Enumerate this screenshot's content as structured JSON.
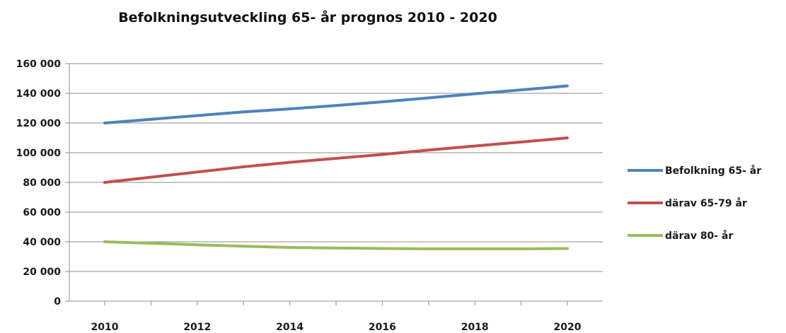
{
  "chart_data": {
    "type": "line",
    "title": "Befolkningsutveckling 65- år  prognos 2010 - 2020",
    "xlabel": "",
    "ylabel": "",
    "x": [
      2010,
      2011,
      2012,
      2013,
      2014,
      2015,
      2016,
      2017,
      2018,
      2019,
      2020
    ],
    "x_tick_labels": [
      "2010",
      "2012",
      "2014",
      "2016",
      "2018",
      "2020"
    ],
    "y_tick_labels": [
      "0",
      "20 000",
      "40 000",
      "60 000",
      "80 000",
      "100 000",
      "120 000",
      "140 000",
      "160 000"
    ],
    "ylim": [
      0,
      160000
    ],
    "grid": true,
    "legend_position": "right",
    "series": [
      {
        "name": "Befolkning 65- år",
        "color": "#4f81bd",
        "values": [
          120000,
          122500,
          125000,
          127500,
          129500,
          131800,
          134300,
          136900,
          139700,
          142300,
          145000
        ]
      },
      {
        "name": "därav 65-79 år",
        "color": "#c0504d",
        "values": [
          80000,
          83500,
          87000,
          90500,
          93500,
          96200,
          98800,
          101800,
          104500,
          107200,
          110000
        ]
      },
      {
        "name": "därav 80- år",
        "color": "#9bbb59",
        "values": [
          40000,
          39000,
          38000,
          37000,
          36200,
          35800,
          35500,
          35300,
          35300,
          35300,
          35500
        ]
      }
    ]
  }
}
